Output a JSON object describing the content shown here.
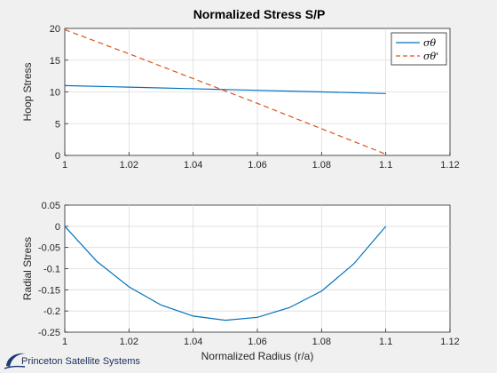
{
  "figure": {
    "title": "Normalized Stress S/P",
    "logo_text": "Princeton Satellite Systems"
  },
  "colors": {
    "series_hoop": "#0072bd",
    "series_hoop_prime": "#d95319",
    "background": "#f0f0f0"
  },
  "chart_data": [
    {
      "type": "line",
      "title": "Normalized Stress S/P",
      "xlabel": "",
      "ylabel": "Hoop Stress",
      "xlim": [
        1,
        1.12
      ],
      "ylim": [
        0,
        20
      ],
      "xticks": [
        "1",
        "1.02",
        "1.04",
        "1.06",
        "1.08",
        "1.1",
        "1.12"
      ],
      "xtick_values": [
        1,
        1.02,
        1.04,
        1.06,
        1.08,
        1.1,
        1.12
      ],
      "yticks": [
        "0",
        "5",
        "10",
        "15",
        "20"
      ],
      "ytick_values": [
        0,
        5,
        10,
        15,
        20
      ],
      "grid": true,
      "legend": "top-right",
      "series": [
        {
          "name": "σθ",
          "style": "solid",
          "color": "#0072bd",
          "x": [
            1,
            1.02,
            1.04,
            1.06,
            1.08,
            1.1
          ],
          "y": [
            11.0,
            10.75,
            10.5,
            10.25,
            10.0,
            9.75
          ]
        },
        {
          "name": "σθ'",
          "style": "dashed",
          "color": "#d95319",
          "x": [
            1,
            1.02,
            1.04,
            1.06,
            1.08,
            1.1
          ],
          "y": [
            19.8,
            16.0,
            12.1,
            8.2,
            4.2,
            0.2
          ]
        }
      ]
    },
    {
      "type": "line",
      "title": "",
      "xlabel": "Normalized Radius (r/a)",
      "ylabel": "Radial Stress",
      "xlim": [
        1,
        1.12
      ],
      "ylim": [
        -0.25,
        0.05
      ],
      "xticks": [
        "1",
        "1.02",
        "1.04",
        "1.06",
        "1.08",
        "1.1",
        "1.12"
      ],
      "xtick_values": [
        1,
        1.02,
        1.04,
        1.06,
        1.08,
        1.1,
        1.12
      ],
      "yticks": [
        "-0.25",
        "-0.2",
        "-0.15",
        "-0.1",
        "-0.05",
        "0",
        "0.05"
      ],
      "ytick_values": [
        -0.25,
        -0.2,
        -0.15,
        -0.1,
        -0.05,
        0,
        0.05
      ],
      "grid": true,
      "legend": "none",
      "series": [
        {
          "style": "solid",
          "color": "#0072bd",
          "x": [
            1,
            1.01,
            1.02,
            1.03,
            1.04,
            1.05,
            1.06,
            1.07,
            1.08,
            1.09,
            1.1
          ],
          "y": [
            0,
            -0.083,
            -0.143,
            -0.186,
            -0.212,
            -0.222,
            -0.215,
            -0.192,
            -0.153,
            -0.089,
            0
          ]
        }
      ]
    }
  ]
}
